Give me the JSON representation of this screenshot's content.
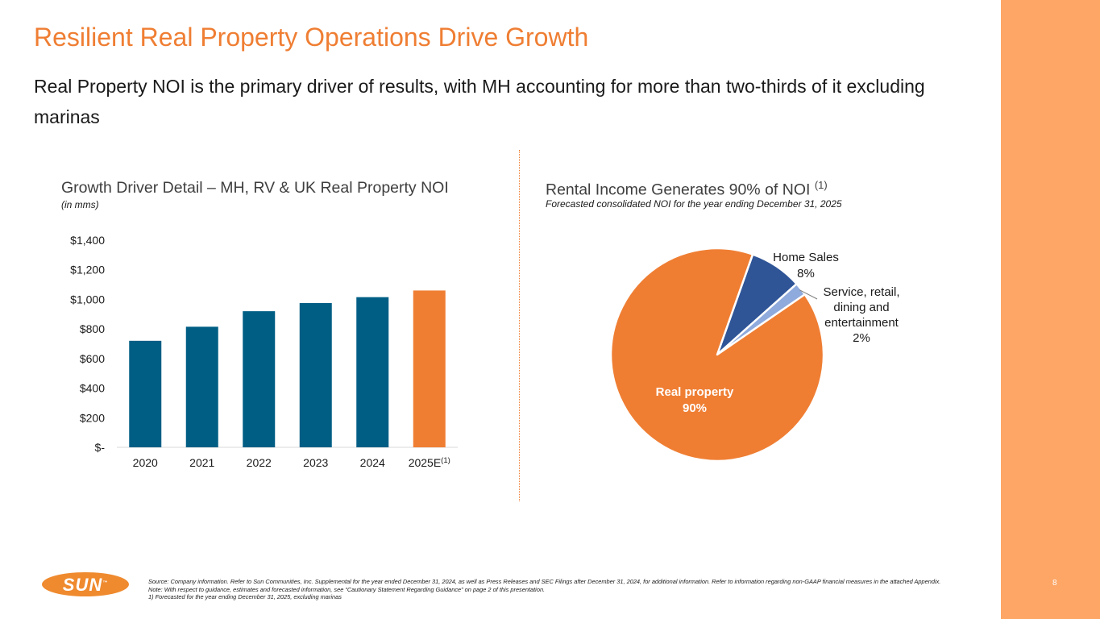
{
  "title": "Resilient Real Property Operations Drive Growth",
  "subtitle": "Real Property NOI is the primary driver of results, with MH accounting for more than two-thirds of it excluding marinas",
  "page_number": "8",
  "logo": {
    "text": "SUN",
    "mark": "™"
  },
  "left_panel": {
    "title": "Growth Driver Detail – MH, RV & UK Real Property NOI",
    "subtitle": "(in mms)"
  },
  "right_panel": {
    "title": "Rental Income Generates 90% of NOI",
    "title_sup": "(1)",
    "subtitle": "Forecasted consolidated NOI for the year ending December 31, 2025"
  },
  "colors": {
    "accent": "#ef7e33",
    "bar": "#005e85",
    "bar_estimate": "#ef7e33",
    "pie_home": "#2f5597",
    "pie_service": "#8faadc",
    "band": "#fda666"
  },
  "chart_data": [
    {
      "type": "bar",
      "title": "Growth Driver Detail – MH, RV & UK Real Property NOI",
      "ylabel": "(in mms)",
      "categories": [
        "2020",
        "2021",
        "2022",
        "2023",
        "2024",
        "2025E"
      ],
      "category_sup": [
        "",
        "",
        "",
        "",
        "",
        "(1)"
      ],
      "values": [
        720,
        815,
        920,
        975,
        1015,
        1060
      ],
      "ylim": [
        0,
        1400
      ],
      "yticks": [
        0,
        200,
        400,
        600,
        800,
        1000,
        1200,
        1400
      ],
      "ytick_labels": [
        "$-",
        "$200",
        "$400",
        "$600",
        "$800",
        "$1,000",
        "$1,200",
        "$1,400"
      ],
      "grid": false
    },
    {
      "type": "pie",
      "title": "Rental Income Generates 90% of NOI",
      "labels": [
        "Real property",
        "Home Sales",
        "Service, retail, dining and entertainment"
      ],
      "label_lines": [
        [
          "Real property",
          "90%"
        ],
        [
          "Home Sales",
          "8%"
        ],
        [
          "Service, retail,",
          "dining and",
          "entertainment",
          "2%"
        ]
      ],
      "values": [
        90,
        8,
        2
      ]
    }
  ],
  "footnotes": [
    "Source: Company information. Refer to Sun Communities, Inc. Supplemental for the year ended December 31, 2024, as well as Press Releases and SEC Filings after December 31, 2024, for additional information. Refer to information regarding non-GAAP financial measures in the attached Appendix.",
    "Note:  With respect to guidance, estimates and forecasted information, see “Cautionary Statement Regarding Guidance” on page 2 of this presentation.",
    "1)       Forecasted for the year ending December 31, 2025, excluding marinas"
  ]
}
